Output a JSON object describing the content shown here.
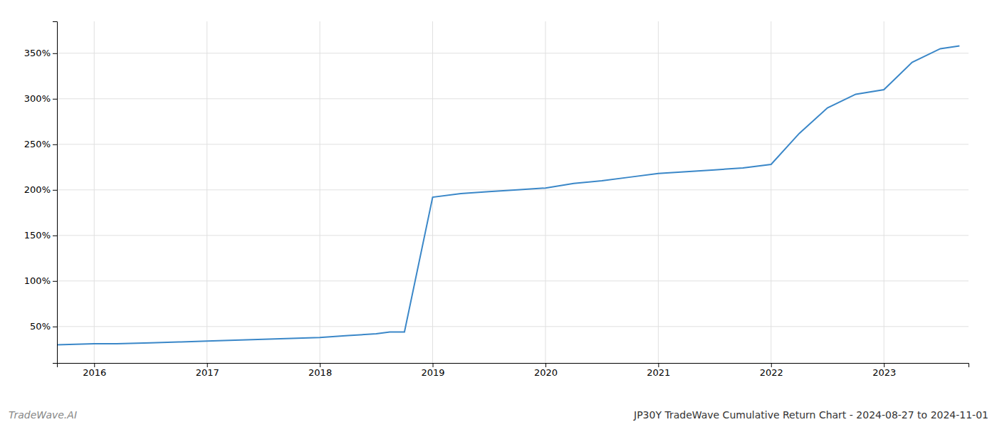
{
  "chart_data": {
    "type": "line",
    "title": "JP30Y TradeWave Cumulative Return Chart - 2024-08-27 to 2024-11-01",
    "annotations": [
      "TradeWave.AI"
    ],
    "x": [
      2015.67,
      2016.0,
      2016.2,
      2016.5,
      2016.75,
      2017.0,
      2017.25,
      2017.5,
      2017.75,
      2018.0,
      2018.25,
      2018.5,
      2018.62,
      2018.75,
      2019.0,
      2019.25,
      2019.5,
      2019.75,
      2020.0,
      2020.25,
      2020.5,
      2020.75,
      2021.0,
      2021.25,
      2021.5,
      2021.75,
      2022.0,
      2022.25,
      2022.5,
      2022.75,
      2023.0,
      2023.25,
      2023.5,
      2023.67
    ],
    "values": [
      30,
      31,
      31,
      32,
      33,
      34,
      35,
      36,
      37,
      38,
      40,
      42,
      44,
      44,
      192,
      196,
      198,
      200,
      202,
      207,
      210,
      214,
      218,
      220,
      222,
      224,
      228,
      262,
      290,
      305,
      310,
      340,
      355,
      358
    ],
    "color": "#3a87c8",
    "xlim": [
      2015.67,
      2023.75
    ],
    "ylim": [
      10,
      385
    ],
    "xticks": [
      2016,
      2017,
      2018,
      2019,
      2020,
      2021,
      2022,
      2023
    ],
    "yticks": [
      {
        "value": 50,
        "label": "50%"
      },
      {
        "value": 100,
        "label": "100%"
      },
      {
        "value": 150,
        "label": "150%"
      },
      {
        "value": 200,
        "label": "200%"
      },
      {
        "value": 250,
        "label": "250%"
      },
      {
        "value": 300,
        "label": "300%"
      },
      {
        "value": 350,
        "label": "350%"
      }
    ],
    "grid": true
  }
}
